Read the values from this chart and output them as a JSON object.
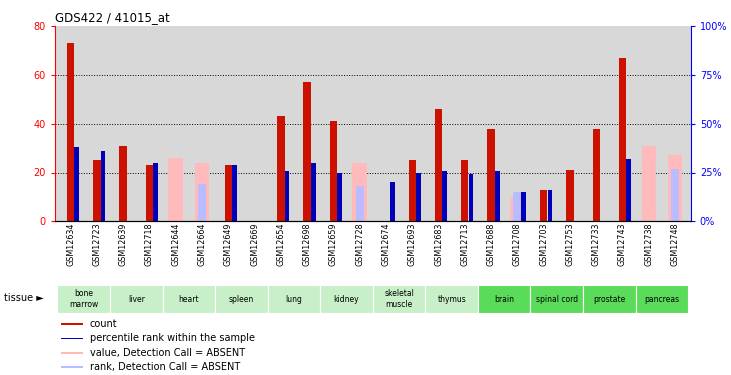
{
  "title": "GDS422 / 41015_at",
  "samples": [
    "GSM12634",
    "GSM12723",
    "GSM12639",
    "GSM12718",
    "GSM12644",
    "GSM12664",
    "GSM12649",
    "GSM12669",
    "GSM12654",
    "GSM12698",
    "GSM12659",
    "GSM12728",
    "GSM12674",
    "GSM12693",
    "GSM12683",
    "GSM12713",
    "GSM12688",
    "GSM12708",
    "GSM12703",
    "GSM12753",
    "GSM12733",
    "GSM12743",
    "GSM12738",
    "GSM12748"
  ],
  "count_values": [
    73,
    25,
    31,
    23,
    0,
    0,
    23,
    0,
    43,
    57,
    41,
    0,
    0,
    25,
    46,
    25,
    38,
    0,
    13,
    21,
    38,
    67,
    0,
    0
  ],
  "percentile_values": [
    38,
    36,
    0,
    30,
    0,
    0,
    29,
    0,
    26,
    30,
    25,
    0,
    20,
    25,
    26,
    24,
    26,
    15,
    16,
    0,
    0,
    32,
    0,
    0
  ],
  "absent_value_values": [
    0,
    0,
    0,
    0,
    26,
    24,
    0,
    0,
    0,
    0,
    0,
    24,
    0,
    0,
    0,
    0,
    0,
    10,
    0,
    0,
    0,
    0,
    31,
    27
  ],
  "absent_rank_values": [
    0,
    0,
    0,
    0,
    0,
    19,
    0,
    0,
    0,
    0,
    0,
    18,
    0,
    0,
    0,
    0,
    0,
    15,
    0,
    0,
    0,
    0,
    0,
    27
  ],
  "tissues": [
    {
      "label": "bone\nmarrow",
      "start": 0,
      "end": 2,
      "color": "#c8f0c8"
    },
    {
      "label": "liver",
      "start": 2,
      "end": 4,
      "color": "#c8f0c8"
    },
    {
      "label": "heart",
      "start": 4,
      "end": 6,
      "color": "#c8f0c8"
    },
    {
      "label": "spleen",
      "start": 6,
      "end": 8,
      "color": "#c8f0c8"
    },
    {
      "label": "lung",
      "start": 8,
      "end": 10,
      "color": "#c8f0c8"
    },
    {
      "label": "kidney",
      "start": 10,
      "end": 12,
      "color": "#c8f0c8"
    },
    {
      "label": "skeletal\nmuscle",
      "start": 12,
      "end": 14,
      "color": "#c8f0c8"
    },
    {
      "label": "thymus",
      "start": 14,
      "end": 16,
      "color": "#c8f0c8"
    },
    {
      "label": "brain",
      "start": 16,
      "end": 18,
      "color": "#5adc5a"
    },
    {
      "label": "spinal cord",
      "start": 18,
      "end": 20,
      "color": "#5adc5a"
    },
    {
      "label": "prostate",
      "start": 20,
      "end": 22,
      "color": "#5adc5a"
    },
    {
      "label": "pancreas",
      "start": 22,
      "end": 24,
      "color": "#5adc5a"
    }
  ],
  "ylim_left": [
    0,
    80
  ],
  "ylim_right": [
    0,
    100
  ],
  "yticks_left": [
    0,
    20,
    40,
    60,
    80
  ],
  "yticks_right": [
    0,
    25,
    50,
    75,
    100
  ],
  "bar_color_count": "#cc1100",
  "bar_color_percentile": "#0000bb",
  "bar_color_absent_value": "#ffbbbb",
  "bar_color_absent_rank": "#bbbbff",
  "bg_color_chart": "#d8d8d8",
  "legend_items": [
    {
      "color": "#cc1100",
      "label": "count"
    },
    {
      "color": "#0000bb",
      "label": "percentile rank within the sample"
    },
    {
      "color": "#ffbbbb",
      "label": "value, Detection Call = ABSENT"
    },
    {
      "color": "#bbbbff",
      "label": "rank, Detection Call = ABSENT"
    }
  ]
}
